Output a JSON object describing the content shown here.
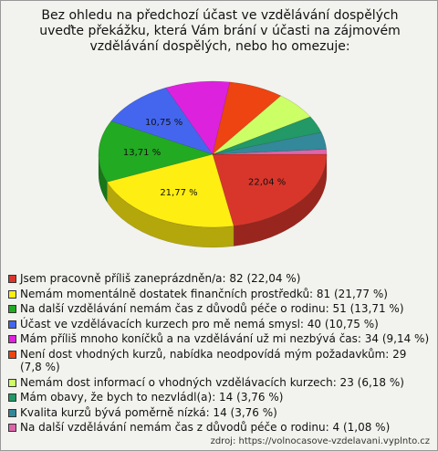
{
  "chart_data": {
    "type": "pie3d",
    "title": "Bez ohledu na předchozí účast ve vzdělávání dospělých uveďte překážku, která Vám brání v účasti na zájmovém vzdělávání dospělých, nebo ho omezuje:",
    "categories": [
      "Jsem pracovně příliš zaneprázdněn/a: 82 (22,04 %)",
      "Nemám momentálně dostatek finančních prostředků: 81 (21,77 %)",
      "Na další vzdělávání nemám čas z důvodů péče o rodinu: 51 (13,71 %)",
      "Účast ve vzdělávacích kurzech pro mě nemá smysl: 40 (10,75 %)",
      "Mám příliš mnoho koníčků a na vzdělávání už mi nezbývá čas: 34 (9,14 %)",
      "Není dost vhodných kurzů, nabídka neodpovídá mým požadavkům: 29 (7,8 %)",
      "Nemám dost informací o vhodných vzdělávacích kurzech: 23 (6,18 %)",
      "Mám obavy, že bych to nezvládl(a): 14 (3,76 %)",
      "Kvalita kurzů bývá poměrně nízká: 14 (3,76 %)",
      "Na další vzdělávání nemám čas z důvodů péče o rodinu: 4 (1,08 %)"
    ],
    "values": [
      22.04,
      21.77,
      13.71,
      10.75,
      9.14,
      7.8,
      6.18,
      3.76,
      3.76,
      1.08
    ],
    "value_labels": [
      "22,04 %",
      "21,77 %",
      "13,71 %",
      "10,75 %",
      null,
      null,
      null,
      null,
      null,
      null
    ],
    "colors": [
      "#d9362b",
      "#ffee11",
      "#22aa22",
      "#4466ee",
      "#dd22dd",
      "#ee4411",
      "#ccff66",
      "#229966",
      "#338899",
      "#dd66aa"
    ],
    "source": "zdroj: https://volnocasove-vzdelavani.vyplnto.cz"
  }
}
